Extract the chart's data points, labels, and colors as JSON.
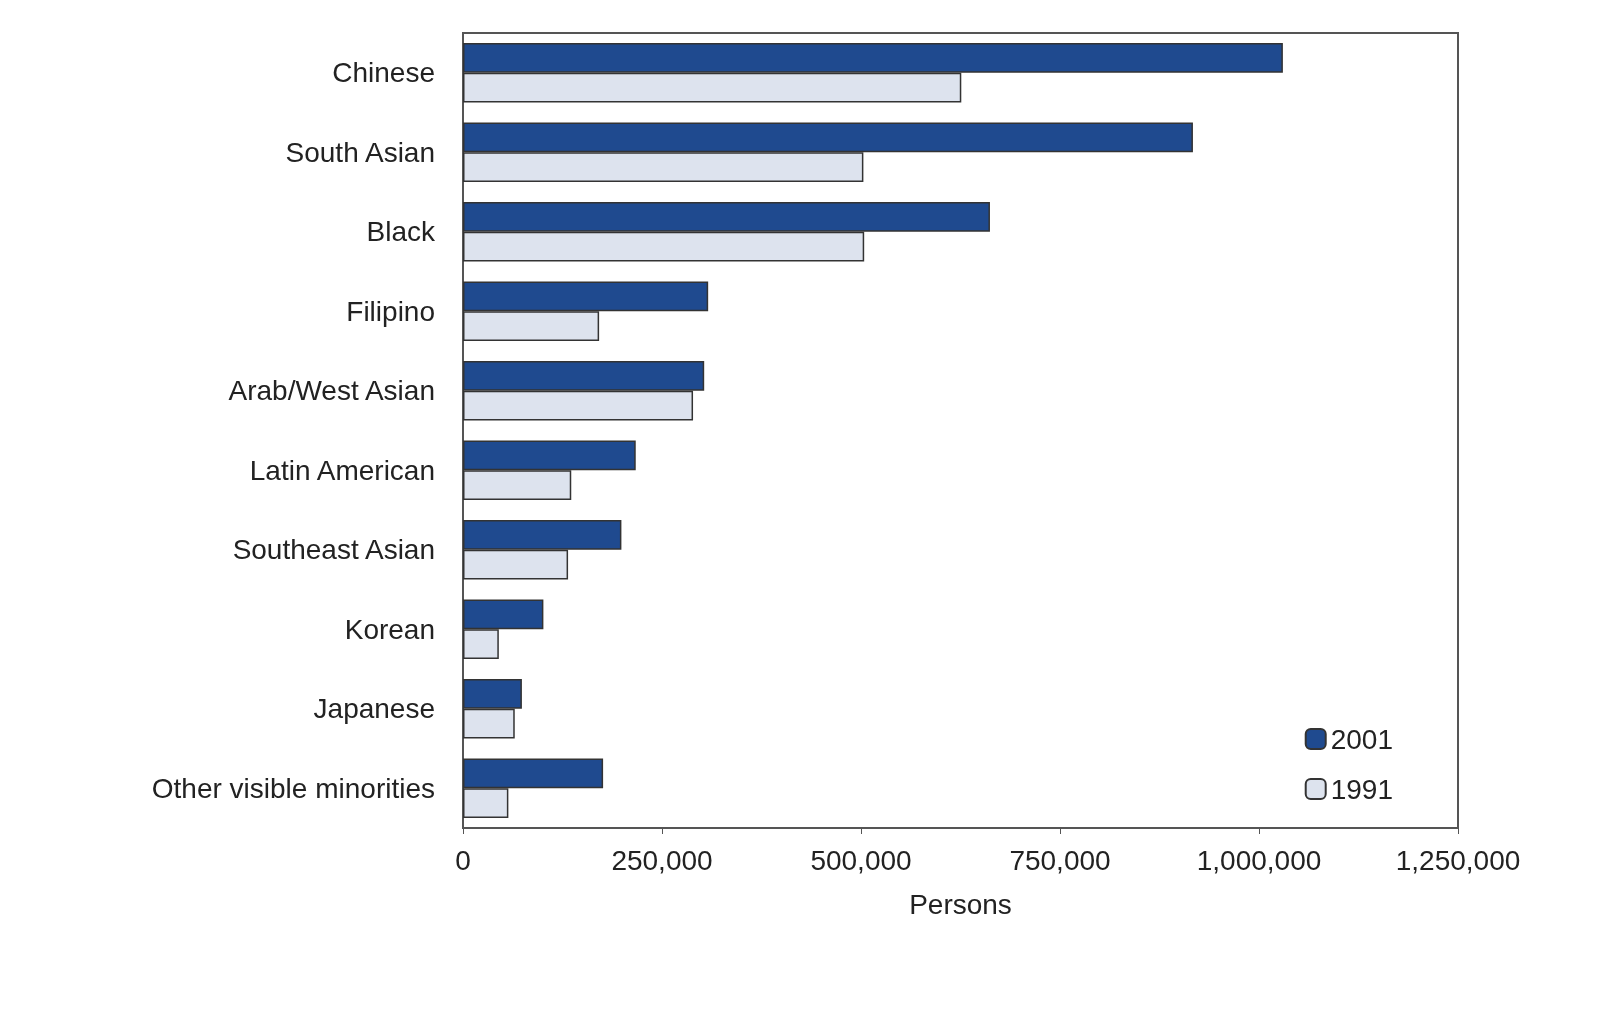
{
  "chart_data": {
    "type": "bar",
    "orientation": "horizontal",
    "xlabel": "Persons",
    "categories": [
      "Chinese",
      "South Asian",
      "Black",
      "Filipino",
      "Arab/West Asian",
      "Latin American",
      "Southeast Asian",
      "Korean",
      "Japanese",
      "Other visible minorities"
    ],
    "series": [
      {
        "name": "2001",
        "color": "#1f4a8f",
        "values": [
          1030000,
          917000,
          662000,
          308000,
          303000,
          217000,
          199000,
          101000,
          74000,
          176000
        ]
      },
      {
        "name": "1991",
        "color": "#dde3ee",
        "values": [
          626000,
          503000,
          504000,
          171000,
          289000,
          136000,
          132000,
          45000,
          65000,
          57000
        ]
      }
    ],
    "xlim": [
      0,
      1250000
    ],
    "xticks": [
      0,
      {
        "value": 250000,
        "label": "250,000"
      },
      {
        "value": 500000,
        "label": "500,000"
      },
      {
        "value": 750000,
        "label": "750,000"
      },
      {
        "value": 1000000,
        "label": "1,000,000"
      },
      {
        "value": 1250000,
        "label": "1,250,000"
      }
    ],
    "grid": false,
    "legend": "bottom right"
  }
}
